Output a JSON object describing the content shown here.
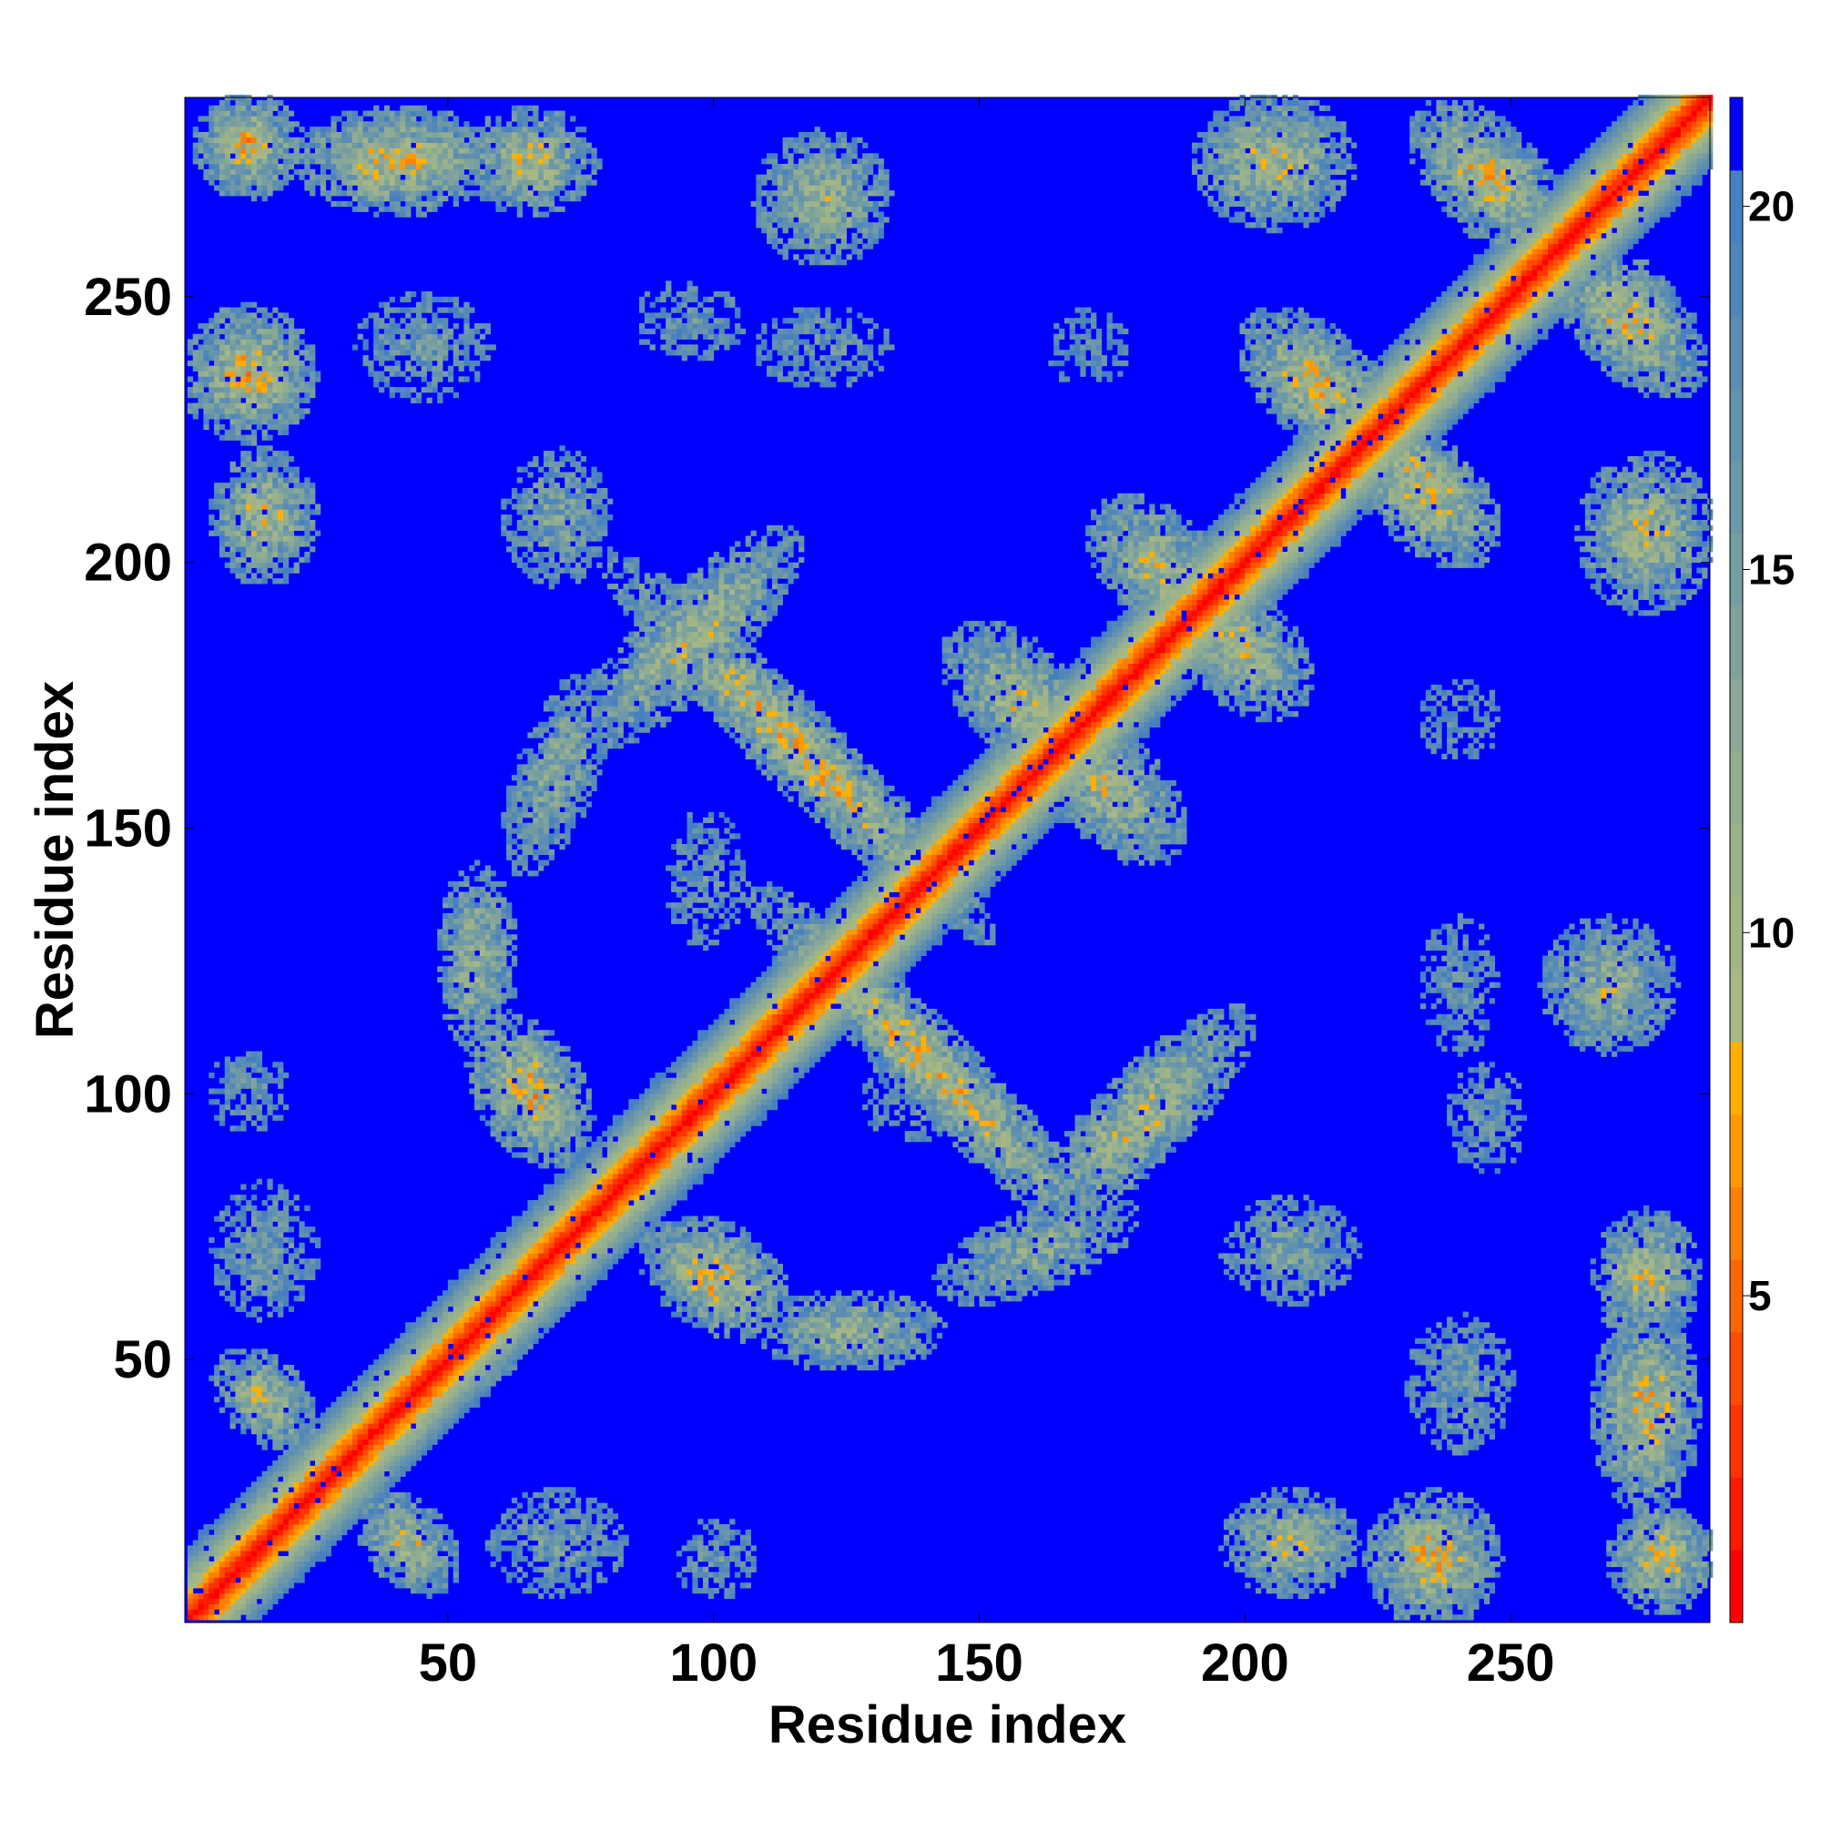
{
  "chart_data": {
    "type": "heatmap",
    "title": "",
    "xlabel": "Residue index",
    "ylabel": "Residue index",
    "n_residues": 287,
    "xlim": [
      1,
      287
    ],
    "ylim": [
      1,
      287
    ],
    "x_ticks": [
      50,
      100,
      150,
      200,
      250
    ],
    "y_ticks": [
      50,
      100,
      150,
      200,
      250
    ],
    "colorbar": {
      "ticks": [
        5,
        10,
        15,
        20
      ],
      "range": [
        0.5,
        21.5
      ],
      "placement": "right"
    },
    "colormap": {
      "levels": [
        {
          "upper": 1.5,
          "color": "#ff0000"
        },
        {
          "upper": 2.5,
          "color": "#ff1a00"
        },
        {
          "upper": 3.5,
          "color": "#ff3300"
        },
        {
          "upper": 4.5,
          "color": "#ff4d00"
        },
        {
          "upper": 5.5,
          "color": "#ff6600"
        },
        {
          "upper": 6.5,
          "color": "#ff8000"
        },
        {
          "upper": 7.5,
          "color": "#ff9900"
        },
        {
          "upper": 8.5,
          "color": "#ffb000"
        },
        {
          "upper": 9.5,
          "color": "#a8b884"
        },
        {
          "upper": 10.5,
          "color": "#a3b585"
        },
        {
          "upper": 11.5,
          "color": "#9cb28a"
        },
        {
          "upper": 12.5,
          "color": "#92ae90"
        },
        {
          "upper": 13.5,
          "color": "#89a996"
        },
        {
          "upper": 14.5,
          "color": "#7fa39c"
        },
        {
          "upper": 15.5,
          "color": "#769ea2"
        },
        {
          "upper": 16.5,
          "color": "#6c98a8"
        },
        {
          "upper": 17.5,
          "color": "#6392ae"
        },
        {
          "upper": 18.5,
          "color": "#5a8cb4"
        },
        {
          "upper": 19.5,
          "color": "#5086ba"
        },
        {
          "upper": 20.5,
          "color": "#4680c0"
        },
        {
          "upper": 21.5,
          "color": "#0000ff"
        }
      ]
    },
    "contact_regions": [
      {
        "cx": 115,
        "cy": 165,
        "sx": 40,
        "sy": 6,
        "rot": -45,
        "depth": 9
      },
      {
        "cx": 140,
        "cy": 105,
        "sx": 38,
        "sy": 6,
        "rot": -45,
        "depth": 9
      },
      {
        "cx": 180,
        "cy": 95,
        "sx": 22,
        "sy": 7,
        "rot": 45,
        "depth": 8
      },
      {
        "cx": 95,
        "cy": 185,
        "sx": 22,
        "sy": 7,
        "rot": 45,
        "depth": 8
      },
      {
        "cx": 100,
        "cy": 65,
        "sx": 12,
        "sy": 8,
        "rot": -30,
        "depth": 9
      },
      {
        "cx": 65,
        "cy": 100,
        "sx": 12,
        "sy": 8,
        "rot": -60,
        "depth": 9
      },
      {
        "cx": 125,
        "cy": 55,
        "sx": 14,
        "sy": 6,
        "rot": 0,
        "depth": 7
      },
      {
        "cx": 55,
        "cy": 125,
        "sx": 6,
        "sy": 14,
        "rot": 0,
        "depth": 7
      },
      {
        "cx": 160,
        "cy": 70,
        "sx": 16,
        "sy": 6,
        "rot": 20,
        "depth": 6
      },
      {
        "cx": 70,
        "cy": 160,
        "sx": 6,
        "sy": 16,
        "rot": -20,
        "depth": 6
      },
      {
        "cx": 157,
        "cy": 174,
        "sx": 14,
        "sy": 8,
        "rot": -45,
        "depth": 8
      },
      {
        "cx": 174,
        "cy": 157,
        "sx": 14,
        "sy": 8,
        "rot": -45,
        "depth": 8
      },
      {
        "cx": 183,
        "cy": 199,
        "sx": 12,
        "sy": 8,
        "rot": -45,
        "depth": 8
      },
      {
        "cx": 199,
        "cy": 183,
        "sx": 12,
        "sy": 8,
        "rot": -45,
        "depth": 8
      },
      {
        "cx": 213,
        "cy": 233,
        "sx": 14,
        "sy": 8,
        "rot": -45,
        "depth": 9
      },
      {
        "cx": 233,
        "cy": 213,
        "sx": 14,
        "sy": 8,
        "rot": -45,
        "depth": 9
      },
      {
        "cx": 245,
        "cy": 272,
        "sx": 14,
        "sy": 8,
        "rot": -45,
        "depth": 9
      },
      {
        "cx": 272,
        "cy": 245,
        "sx": 14,
        "sy": 8,
        "rot": -45,
        "depth": 9
      },
      {
        "cx": 15,
        "cy": 42,
        "sx": 9,
        "sy": 6,
        "rot": -45,
        "depth": 8
      },
      {
        "cx": 42,
        "cy": 15,
        "sx": 9,
        "sy": 6,
        "rot": -45,
        "depth": 8
      },
      {
        "cx": 56,
        "cy": 53,
        "sx": 10,
        "sy": 6,
        "rot": 45,
        "depth": 6
      },
      {
        "cx": 12,
        "cy": 235,
        "sx": 10,
        "sy": 10,
        "rot": 0,
        "depth": 9
      },
      {
        "cx": 235,
        "cy": 12,
        "sx": 10,
        "sy": 10,
        "rot": 0,
        "depth": 9
      },
      {
        "cx": 15,
        "cy": 208,
        "sx": 8,
        "sy": 10,
        "rot": 0,
        "depth": 8
      },
      {
        "cx": 208,
        "cy": 15,
        "sx": 10,
        "sy": 8,
        "rot": 0,
        "depth": 8
      },
      {
        "cx": 40,
        "cy": 275,
        "sx": 15,
        "sy": 8,
        "rot": 0,
        "depth": 9
      },
      {
        "cx": 275,
        "cy": 40,
        "sx": 8,
        "sy": 15,
        "rot": 0,
        "depth": 9
      },
      {
        "cx": 12,
        "cy": 278,
        "sx": 8,
        "sy": 8,
        "rot": 0,
        "depth": 9
      },
      {
        "cx": 278,
        "cy": 12,
        "sx": 8,
        "sy": 8,
        "rot": 0,
        "depth": 9
      },
      {
        "cx": 65,
        "cy": 275,
        "sx": 10,
        "sy": 8,
        "rot": 0,
        "depth": 8
      },
      {
        "cx": 275,
        "cy": 65,
        "sx": 8,
        "sy": 10,
        "rot": 0,
        "depth": 8
      },
      {
        "cx": 120,
        "cy": 268,
        "sx": 10,
        "sy": 10,
        "rot": 0,
        "depth": 7
      },
      {
        "cx": 268,
        "cy": 120,
        "sx": 10,
        "sy": 10,
        "rot": 0,
        "depth": 7
      },
      {
        "cx": 205,
        "cy": 275,
        "sx": 12,
        "sy": 10,
        "rot": 0,
        "depth": 8
      },
      {
        "cx": 275,
        "cy": 205,
        "sx": 10,
        "sy": 12,
        "rot": 0,
        "depth": 8
      },
      {
        "cx": 208,
        "cy": 70,
        "sx": 10,
        "sy": 8,
        "rot": 0,
        "depth": 5
      },
      {
        "cx": 70,
        "cy": 208,
        "sx": 8,
        "sy": 10,
        "rot": 0,
        "depth": 5
      },
      {
        "cx": 120,
        "cy": 240,
        "sx": 10,
        "sy": 6,
        "rot": 0,
        "depth": 3
      },
      {
        "cx": 240,
        "cy": 120,
        "sx": 6,
        "sy": 10,
        "rot": 0,
        "depth": 3
      },
      {
        "cx": 45,
        "cy": 240,
        "sx": 10,
        "sy": 8,
        "rot": 0,
        "depth": 4
      },
      {
        "cx": 240,
        "cy": 45,
        "sx": 8,
        "sy": 10,
        "rot": 0,
        "depth": 4
      },
      {
        "cx": 70,
        "cy": 15,
        "sx": 10,
        "sy": 8,
        "rot": 0,
        "depth": 4
      },
      {
        "cx": 15,
        "cy": 70,
        "sx": 8,
        "sy": 10,
        "rot": 0,
        "depth": 4
      },
      {
        "cx": 12,
        "cy": 100,
        "sx": 6,
        "sy": 6,
        "rot": 0,
        "depth": 3
      },
      {
        "cx": 100,
        "cy": 12,
        "sx": 6,
        "sy": 6,
        "rot": 0,
        "depth": 3
      },
      {
        "cx": 245,
        "cy": 95,
        "sx": 6,
        "sy": 8,
        "rot": 0,
        "depth": 3
      },
      {
        "cx": 95,
        "cy": 245,
        "sx": 8,
        "sy": 6,
        "rot": 0,
        "depth": 3
      },
      {
        "cx": 170,
        "cy": 240,
        "sx": 6,
        "sy": 6,
        "rot": 0,
        "depth": 2
      },
      {
        "cx": 240,
        "cy": 170,
        "sx": 6,
        "sy": 6,
        "rot": 0,
        "depth": 2
      },
      {
        "cx": 98,
        "cy": 140,
        "sx": 6,
        "sy": 10,
        "rot": 0,
        "depth": 3
      },
      {
        "cx": 140,
        "cy": 98,
        "sx": 10,
        "sy": 6,
        "rot": 0,
        "depth": 3
      }
    ]
  }
}
